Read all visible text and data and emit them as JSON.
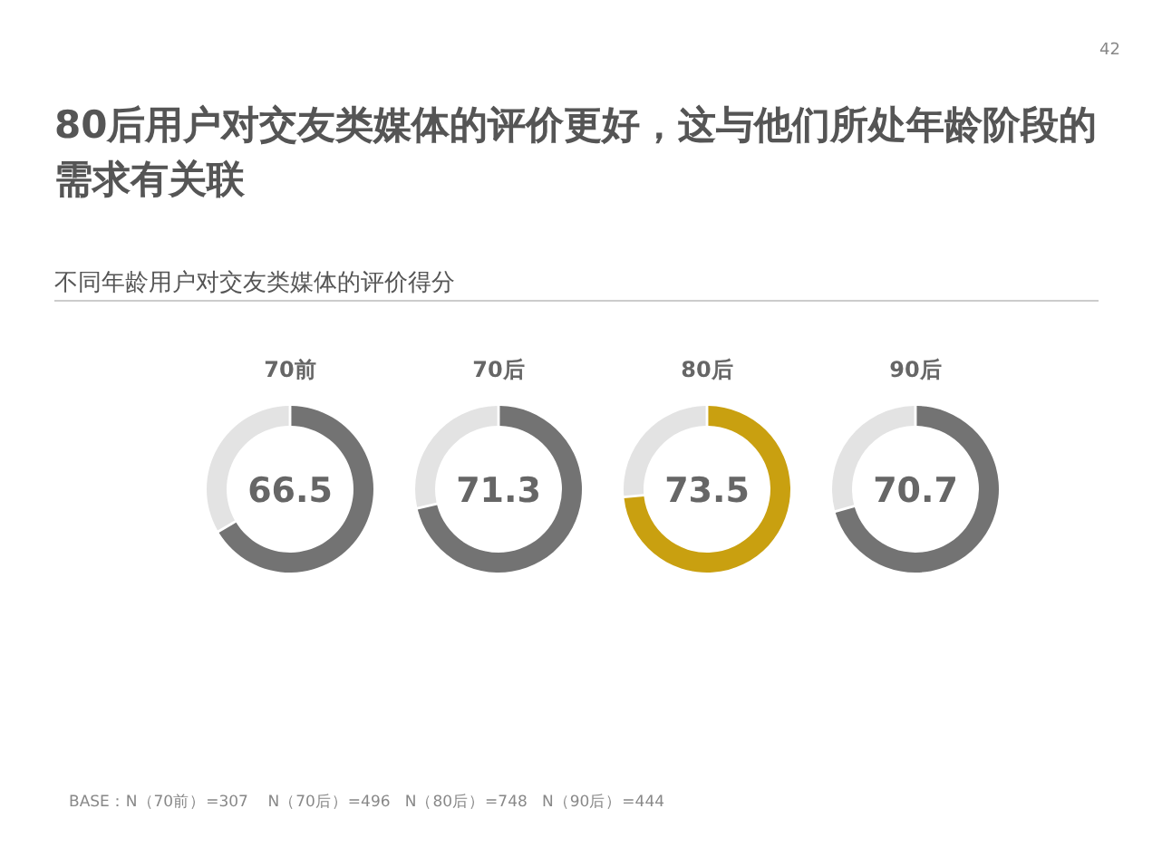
{
  "chart_data": [
    {
      "type": "other",
      "title": "80后用户对交友类媒体的评价更好，这与他们所处年龄阶段的需求有关联",
      "subtitle": "不同年龄用户对交友类媒体的评价得分",
      "annotations": [
        "42"
      ]
    },
    {
      "type": "donut",
      "title": "70前",
      "categories": [
        null,
        null
      ],
      "values": [
        66.5,
        33.5
      ],
      "colors": [
        "#737373",
        "#e3e3e3"
      ],
      "value_labels": [
        "66.5",
        null
      ]
    },
    {
      "type": "donut",
      "title": "70后",
      "categories": [
        null,
        null
      ],
      "values": [
        71.3,
        28.7
      ],
      "colors": [
        "#737373",
        "#e3e3e3"
      ],
      "value_labels": [
        "71.3",
        null
      ]
    },
    {
      "type": "donut",
      "title": "80后",
      "categories": [
        null,
        null
      ],
      "values": [
        73.5,
        26.5
      ],
      "colors": [
        "#c9a010",
        "#e3e3e3"
      ],
      "value_labels": [
        "73.5",
        null
      ]
    },
    {
      "type": "donut",
      "title": "90后",
      "categories": [
        null,
        null
      ],
      "values": [
        70.7,
        29.3
      ],
      "colors": [
        "#737373",
        "#e3e3e3"
      ],
      "value_labels": [
        "70.7",
        null
      ]
    },
    {
      "type": "other",
      "annotations": [
        "BASE：N（70前）=307    N（70后）=496   N（80后）=748   N（90后）=444"
      ]
    }
  ]
}
